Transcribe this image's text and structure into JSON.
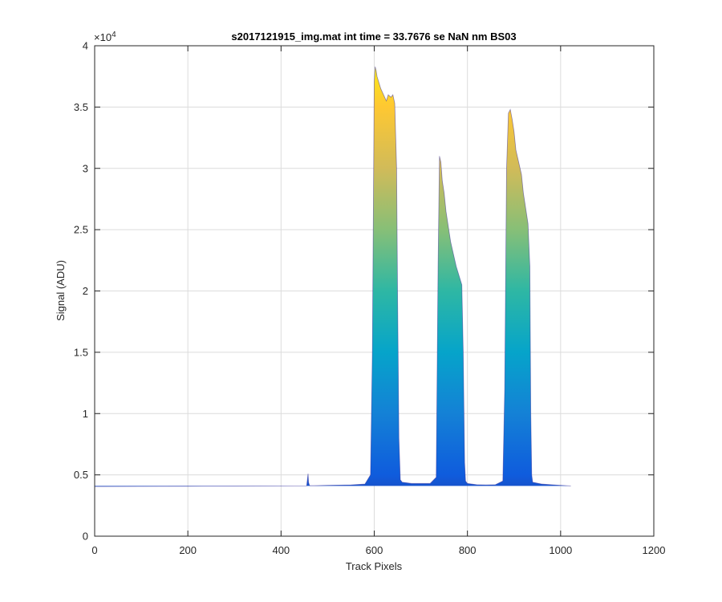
{
  "chart_data": {
    "type": "area",
    "title": "s2017121915_img.mat int time = 33.7676 se  NaN nm BS03",
    "xlabel": "Track Pixels",
    "ylabel": "Signal (ADU)",
    "xlim": [
      0,
      1200
    ],
    "ylim": [
      0,
      40000
    ],
    "y_exponent_label": "×10",
    "y_exponent_power": "4",
    "x_ticks": [
      0,
      200,
      400,
      600,
      800,
      1000,
      1200
    ],
    "x_tick_labels": [
      "0",
      "200",
      "400",
      "600",
      "800",
      "1000",
      "1200"
    ],
    "y_ticks": [
      0,
      5000,
      10000,
      15000,
      20000,
      25000,
      30000,
      35000,
      40000
    ],
    "y_tick_labels": [
      "0",
      "0.5",
      "1",
      "1.5",
      "2",
      "2.5",
      "3",
      "3.5",
      "4"
    ],
    "grid": true,
    "colormap": [
      "#352a87",
      "#0f5cdd",
      "#1481d6",
      "#06a4ca",
      "#2eb7a4",
      "#87bf77",
      "#d1bb59",
      "#fec832",
      "#f9fb0e"
    ],
    "baseline": 4100,
    "series": [
      {
        "x": [
          0,
          100,
          200,
          300,
          400,
          455,
          458,
          459,
          461,
          463,
          470,
          500,
          550,
          580,
          592,
          596,
          600,
          602,
          604,
          606,
          610,
          614,
          620,
          626,
          630,
          636,
          640,
          644,
          648,
          650,
          653,
          656,
          660,
          680,
          700,
          720,
          733,
          737,
          740,
          743,
          746,
          750,
          754,
          760,
          764,
          770,
          776,
          780,
          784,
          788,
          791,
          794,
          796,
          800,
          820,
          840,
          860,
          876,
          880,
          884,
          888,
          892,
          896,
          900,
          904,
          910,
          916,
          920,
          926,
          930,
          934,
          936,
          938,
          940,
          960,
          980,
          1000,
          1022
        ],
        "y": [
          4050,
          4060,
          4070,
          4080,
          4090,
          4110,
          5100,
          4400,
          4150,
          4120,
          4120,
          4150,
          4180,
          4250,
          5000,
          15000,
          37000,
          38300,
          38000,
          37500,
          37000,
          36500,
          36000,
          35500,
          36000,
          35800,
          36000,
          35300,
          30000,
          20000,
          8000,
          4600,
          4400,
          4300,
          4300,
          4300,
          4800,
          22000,
          31000,
          30500,
          29000,
          28000,
          26500,
          25000,
          24000,
          23000,
          22000,
          21500,
          21000,
          20500,
          15000,
          6000,
          4500,
          4300,
          4200,
          4180,
          4200,
          4500,
          12000,
          30000,
          34500,
          34800,
          34000,
          33000,
          31500,
          30500,
          29500,
          28000,
          26500,
          25500,
          22000,
          10000,
          5000,
          4400,
          4250,
          4200,
          4150,
          4100
        ]
      }
    ]
  }
}
